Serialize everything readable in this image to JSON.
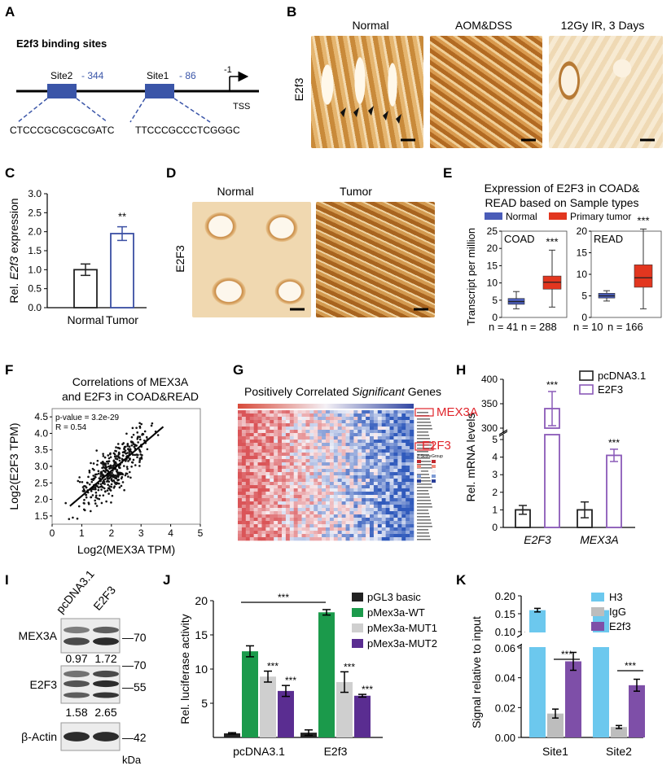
{
  "panels": {
    "A": {
      "letter": "A",
      "title": "E2f3 binding sites",
      "site2": "Site2",
      "site2_pos": "- 344",
      "site1": "Site1",
      "site1_pos": "- 86",
      "tss_marker": "-1",
      "tss": "TSS",
      "seq2": "CTCCCGCGCGCGATC",
      "seq1": "TTCCCGCCCTCGGGC"
    },
    "B": {
      "letter": "B",
      "row_label": "E2f3",
      "columns": [
        "Normal",
        "AOM&DSS",
        "12Gy IR, 3 Days"
      ]
    },
    "C": {
      "letter": "C",
      "ylabel_prefix": "Rel. ",
      "ylabel_italic": "E2f3",
      "ylabel_suffix": " expression",
      "significance": "**"
    },
    "D": {
      "letter": "D",
      "row_label": "E2F3",
      "columns": [
        "Normal",
        "Tumor"
      ]
    },
    "E": {
      "letter": "E",
      "title_line1": "Expression of E2F3 in COAD&",
      "title_line2": "READ based on Sample types",
      "legend": [
        "Normal",
        "Primary tumor"
      ],
      "ylabel": "Transcript per million",
      "subplots": [
        "COAD",
        "READ"
      ],
      "n_labels": [
        "n = 41",
        "n = 288",
        "n = 10",
        "n = 166"
      ],
      "significance": "***"
    },
    "F": {
      "letter": "F",
      "title_line1": "Correlations of MEX3A",
      "title_line2": "and E2F3 in COAD&READ",
      "pvalue": "p-value = 3.2e-29",
      "r": "R = 0.54",
      "xlabel": "Log2(MEX3A TPM)",
      "ylabel": "Log2(E2F3 TPM)"
    },
    "G": {
      "letter": "G",
      "title_prefix": "Positively Correlated ",
      "title_italic": "Significant",
      "title_suffix": " Genes",
      "label_top": "MEX3A",
      "label_mid": "E2F3",
      "legend_zscore": "Z-Score",
      "legend_group": "Group"
    },
    "H": {
      "letter": "H",
      "ylabel": "Rel. mRNA levels",
      "significance": "***"
    },
    "I": {
      "letter": "I",
      "lanes": [
        "pcDNA3.1",
        "E2F3"
      ],
      "proteins": [
        "MEX3A",
        "E2F3",
        "β-Actin"
      ],
      "kda": [
        "70",
        "70",
        "55",
        "42"
      ],
      "mex3a_quant": [
        "0.97",
        "1.72"
      ],
      "e2f3_quant": [
        "1.58",
        "2.65"
      ],
      "unit": "kDa"
    },
    "J": {
      "letter": "J",
      "ylabel": "Rel. luciferase activity",
      "significance": "***"
    },
    "K": {
      "letter": "K",
      "ylabel": "Signal relative to input",
      "significance": "***"
    }
  },
  "chart_data": [
    {
      "id": "C",
      "type": "bar",
      "categories": [
        "Normal",
        "Tumor"
      ],
      "values": [
        1.0,
        1.95
      ],
      "errors": [
        0.15,
        0.18
      ],
      "colors": [
        "#222222",
        "#3a4fa3"
      ],
      "ylim": [
        0,
        3
      ],
      "yticks": [
        0,
        0.5,
        1.0,
        1.5,
        2.0,
        2.5,
        3.0
      ]
    },
    {
      "id": "E",
      "type": "box",
      "series_colors": {
        "normal": "#4a5cb8",
        "tumor": "#e2361f"
      },
      "subplots": [
        {
          "name": "COAD",
          "ylim": [
            0,
            25
          ],
          "yticks": [
            0,
            5,
            10,
            15,
            20,
            25
          ],
          "boxes": [
            {
              "group": "normal",
              "min": 2.5,
              "q1": 3.8,
              "median": 4.6,
              "q3": 5.5,
              "max": 7.5
            },
            {
              "group": "tumor",
              "min": 3,
              "q1": 8.2,
              "median": 10.2,
              "q3": 12,
              "max": 19.5
            }
          ]
        },
        {
          "name": "READ",
          "ylim": [
            0,
            20
          ],
          "yticks": [
            0,
            5,
            10,
            15,
            20
          ],
          "boxes": [
            {
              "group": "normal",
              "min": 3.8,
              "q1": 4.5,
              "median": 5,
              "q3": 5.6,
              "max": 6.2
            },
            {
              "group": "tumor",
              "min": 2,
              "q1": 7,
              "median": 9.2,
              "q3": 12.2,
              "max": 20.5
            }
          ]
        }
      ]
    },
    {
      "id": "F",
      "type": "scatter",
      "xlim": [
        0,
        5
      ],
      "ylim": [
        1.25,
        4.75
      ],
      "xticks": [
        0,
        1,
        2,
        3,
        4,
        5
      ],
      "yticks": [
        1.5,
        2.0,
        2.5,
        3.0,
        3.5,
        4.0,
        4.5
      ],
      "fit": {
        "x0": 0.6,
        "y0": 1.8,
        "x1": 3.75,
        "y1": 4.2
      }
    },
    {
      "id": "H",
      "type": "bar",
      "categories": [
        "E2F3",
        "MEX3A"
      ],
      "series": [
        {
          "name": "pcDNA3.1",
          "values": [
            1,
            1
          ],
          "errors": [
            0.25,
            0.45
          ],
          "color": "#222222"
        },
        {
          "name": "E2F3",
          "values": [
            340,
            4.1
          ],
          "errors": [
            35,
            0.35
          ],
          "color": "#8a5ab8"
        }
      ],
      "yticks_low": [
        0,
        1,
        2,
        3,
        4,
        5
      ],
      "yticks_high": [
        300,
        350,
        400
      ]
    },
    {
      "id": "J",
      "type": "bar",
      "categories": [
        "pcDNA3.1",
        "E2f3"
      ],
      "series": [
        {
          "name": "pGL3 basic",
          "values": [
            0.6,
            0.7
          ],
          "errors": [
            0.1,
            0.4
          ],
          "color": "#222222"
        },
        {
          "name": "pMex3a-WT",
          "values": [
            12.6,
            18.3
          ],
          "errors": [
            0.8,
            0.4
          ],
          "color": "#1b9a4b"
        },
        {
          "name": "pMex3a-MUT1",
          "values": [
            8.9,
            8.1
          ],
          "errors": [
            0.8,
            1.5
          ],
          "color": "#cfcfcf"
        },
        {
          "name": "pMex3a-MUT2",
          "values": [
            6.8,
            6.1
          ],
          "errors": [
            0.8,
            0.2
          ],
          "color": "#5a2d91"
        }
      ],
      "ylim": [
        0,
        20
      ],
      "yticks": [
        5,
        10,
        15,
        20
      ]
    },
    {
      "id": "K",
      "type": "bar",
      "categories": [
        "Site1",
        "Site2"
      ],
      "series": [
        {
          "name": "H3",
          "values": [
            0.16,
            0.16
          ],
          "errors": [
            0.005,
            0.005
          ],
          "color": "#6cc8ee"
        },
        {
          "name": "IgG",
          "values": [
            0.016,
            0.007
          ],
          "errors": [
            0.003,
            0.001
          ],
          "color": "#bdbdbd"
        },
        {
          "name": "E2f3",
          "values": [
            0.051,
            0.035
          ],
          "errors": [
            0.006,
            0.004
          ],
          "color": "#7e4fa8"
        }
      ],
      "yticks_low": [
        0,
        0.02,
        0.04,
        0.06
      ],
      "yticks_high": [
        0.1,
        0.15,
        0.2
      ]
    }
  ]
}
